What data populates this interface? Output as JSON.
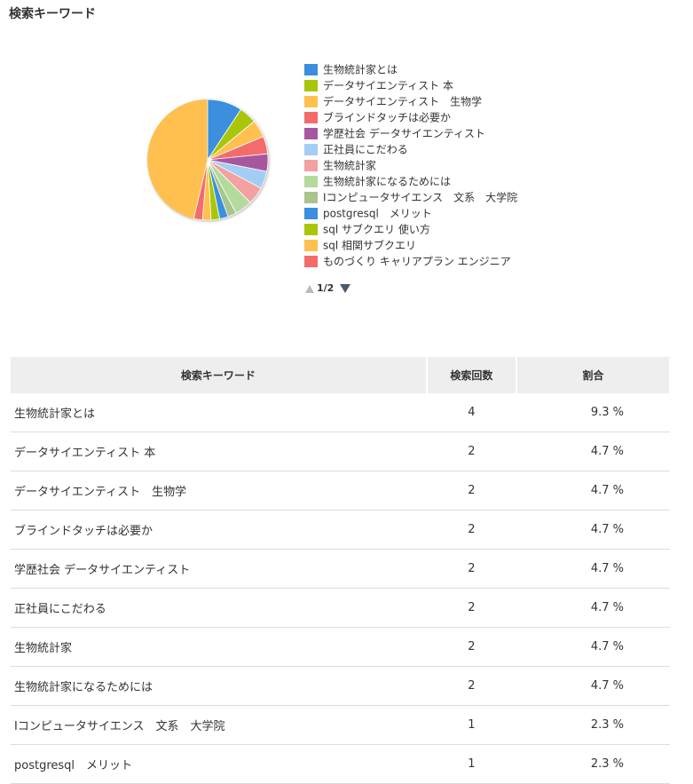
{
  "header": {
    "title": "検索キーワード"
  },
  "chart_data": {
    "type": "pie",
    "categories": [
      "生物統計家とは",
      "データサイエンティスト 本",
      "データサイエンティスト　生物学",
      "ブラインドタッチは必要か",
      "学歴社会 データサイエンティスト",
      "正社員にこだわる",
      "生物統計家",
      "生物統計家になるためには",
      "Iコンピュータサイエンス　文系　大学院",
      "postgresql　メリット",
      "sql サブクエリ 使い方",
      "sql 相関サブクエリ",
      "ものづくり キャリアプラン エンジニア"
    ],
    "values": [
      9.3,
      4.7,
      4.7,
      4.7,
      4.7,
      4.7,
      4.7,
      4.7,
      2.3,
      2.3,
      2.3,
      2.3,
      2.3
    ],
    "colors": [
      "#3b8fde",
      "#a9c60a",
      "#ffc04f",
      "#f46b6b",
      "#a8579f",
      "#a3cdf4",
      "#f3a1a1",
      "#b4da9c",
      "#a9c48d",
      "#3b8fde",
      "#a9c60a",
      "#ffc04f",
      "#f46b6b"
    ],
    "pager": "1/2"
  },
  "table": {
    "columns": [
      "検索キーワード",
      "検索回数",
      "割合"
    ],
    "rows": [
      [
        "生物統計家とは",
        "4",
        "9.3 %"
      ],
      [
        "データサイエンティスト 本",
        "2",
        "4.7 %"
      ],
      [
        "データサイエンティスト　生物学",
        "2",
        "4.7 %"
      ],
      [
        "ブラインドタッチは必要か",
        "2",
        "4.7 %"
      ],
      [
        "学歴社会 データサイエンティスト",
        "2",
        "4.7 %"
      ],
      [
        "正社員にこだわる",
        "2",
        "4.7 %"
      ],
      [
        "生物統計家",
        "2",
        "4.7 %"
      ],
      [
        "生物統計家になるためには",
        "2",
        "4.7 %"
      ],
      [
        "Iコンピュータサイエンス　文系　大学院",
        "1",
        "2.3 %"
      ],
      [
        "postgresql　メリット",
        "1",
        "2.3 %"
      ]
    ]
  }
}
